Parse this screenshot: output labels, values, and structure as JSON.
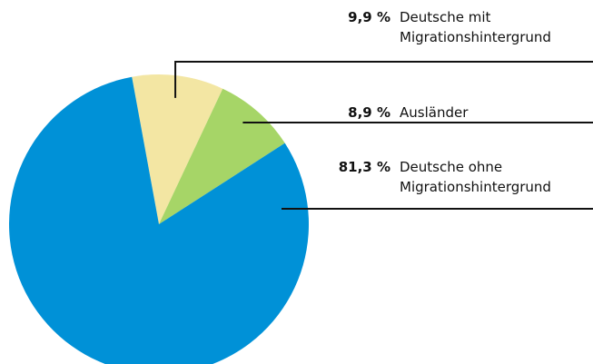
{
  "chart_data": {
    "type": "pie",
    "categories": [
      "Deutsche mit\nMigrationshintergrund",
      "Ausländer",
      "Deutsche ohne\nMigrationshintergrund"
    ],
    "values": [
      9.9,
      8.9,
      81.3
    ],
    "value_labels": [
      "9,9 %",
      "8,9 %",
      "81,3 %"
    ],
    "colors": [
      "#f3e6a3",
      "#a6d567",
      "#0091d7"
    ]
  }
}
